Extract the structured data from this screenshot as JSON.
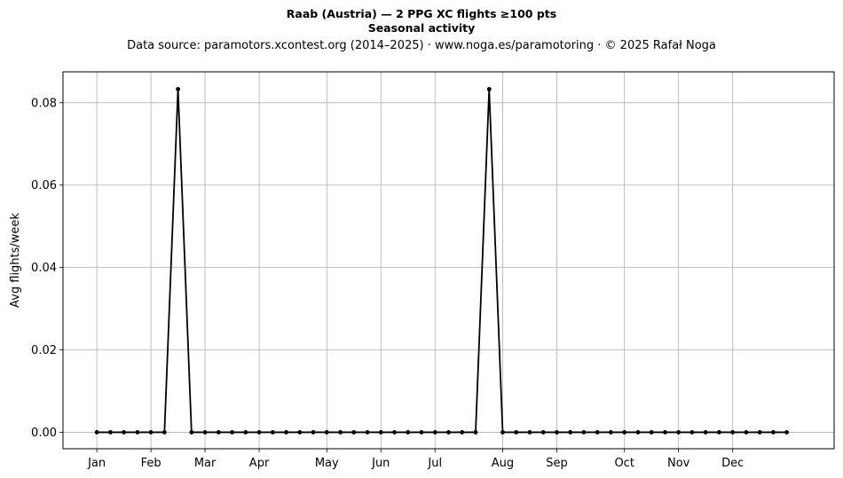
{
  "chart_data": {
    "type": "line",
    "title": "Raab (Austria)  —  2 PPG XC flights ≥100 pts",
    "subtitle": "Seasonal activity",
    "source": "Data source: paramotors.xcontest.org (2014–2025)  ·  www.noga.es/paramotoring  ·  © 2025 Rafał Noga",
    "xlabel": "",
    "ylabel": "Avg flights/week",
    "x_unit": "week of year",
    "xlim": [
      -2.5,
      54.5
    ],
    "ylim": [
      -0.004,
      0.0875
    ],
    "grid": true,
    "month_ticks": [
      {
        "label": "Jan",
        "week": 0
      },
      {
        "label": "Feb",
        "week": 4
      },
      {
        "label": "Mar",
        "week": 8
      },
      {
        "label": "Apr",
        "week": 12
      },
      {
        "label": "May",
        "week": 17
      },
      {
        "label": "Jun",
        "week": 21
      },
      {
        "label": "Jul",
        "week": 25
      },
      {
        "label": "Aug",
        "week": 30
      },
      {
        "label": "Sep",
        "week": 34
      },
      {
        "label": "Oct",
        "week": 39
      },
      {
        "label": "Nov",
        "week": 43
      },
      {
        "label": "Dec",
        "week": 47
      }
    ],
    "y_ticks": [
      "0.00",
      "0.02",
      "0.04",
      "0.06",
      "0.08"
    ],
    "y_tick_values": [
      0,
      0.02,
      0.04,
      0.06,
      0.08
    ],
    "series": [
      {
        "color": "#000000",
        "x": [
          0,
          1,
          2,
          3,
          4,
          5,
          6,
          7,
          8,
          9,
          10,
          11,
          12,
          13,
          14,
          15,
          16,
          17,
          18,
          19,
          20,
          21,
          22,
          23,
          24,
          25,
          26,
          27,
          28,
          29,
          30,
          31,
          32,
          33,
          34,
          35,
          36,
          37,
          38,
          39,
          40,
          41,
          42,
          43,
          44,
          45,
          46,
          47,
          48,
          49,
          50,
          51
        ],
        "values": [
          0,
          0,
          0,
          0,
          0,
          0,
          0.0833,
          0,
          0,
          0,
          0,
          0,
          0,
          0,
          0,
          0,
          0,
          0,
          0,
          0,
          0,
          0,
          0,
          0,
          0,
          0,
          0,
          0,
          0,
          0.0833,
          0,
          0,
          0,
          0,
          0,
          0,
          0,
          0,
          0,
          0,
          0,
          0,
          0,
          0,
          0,
          0,
          0,
          0,
          0,
          0,
          0,
          0
        ]
      }
    ]
  }
}
